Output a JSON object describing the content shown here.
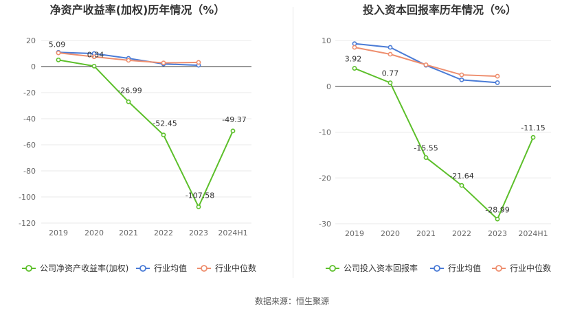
{
  "footer": "数据来源：恒生聚源",
  "colors": {
    "company": "#5cbf2a",
    "avg": "#4a7bd6",
    "median": "#ee8e6e",
    "axis": "#666666",
    "grid": "#e8e8e8"
  },
  "chart_data": [
    {
      "type": "line",
      "title": "净资产收益率(加权)历年情况（%）",
      "categories": [
        "2019",
        "2020",
        "2021",
        "2022",
        "2023",
        "2024H1"
      ],
      "ylim": [
        -120,
        20
      ],
      "yticks": [
        20,
        0,
        -20,
        -40,
        -60,
        -80,
        -100,
        -120
      ],
      "grid": true,
      "legend_position": "bottom",
      "series": [
        {
          "name": "公司净资产收益率(加权)",
          "key": "company",
          "values": [
            5.09,
            0.34,
            -26.99,
            -52.45,
            -107.58,
            -49.37
          ],
          "labels": [
            "5.09",
            "0.34",
            "-26.99",
            "-52.45",
            "-107.58",
            "-49.37"
          ]
        },
        {
          "name": "行业均值",
          "key": "avg",
          "values": [
            10.9,
            10.0,
            6.3,
            2.0,
            1.0,
            null
          ]
        },
        {
          "name": "行业中位数",
          "key": "median",
          "values": [
            10.5,
            7.5,
            4.8,
            2.8,
            3.2,
            null
          ]
        }
      ]
    },
    {
      "type": "line",
      "title": "投入资本回报率历年情况（%）",
      "categories": [
        "2019",
        "2020",
        "2021",
        "2022",
        "2023",
        "2024H1"
      ],
      "ylim": [
        -30,
        10
      ],
      "yticks": [
        10,
        0,
        -10,
        -20,
        -30
      ],
      "grid": true,
      "legend_position": "bottom",
      "series": [
        {
          "name": "公司投入资本回报率",
          "key": "company",
          "values": [
            3.92,
            0.77,
            -15.55,
            -21.64,
            -28.99,
            -11.15
          ],
          "labels": [
            "3.92",
            "0.77",
            "-15.55",
            "-21.64",
            "-28.99",
            "-11.15"
          ]
        },
        {
          "name": "行业均值",
          "key": "avg",
          "values": [
            9.3,
            8.5,
            4.6,
            1.4,
            0.8,
            null
          ]
        },
        {
          "name": "行业中位数",
          "key": "median",
          "values": [
            8.5,
            7.0,
            4.7,
            2.5,
            2.2,
            null
          ]
        }
      ]
    }
  ]
}
